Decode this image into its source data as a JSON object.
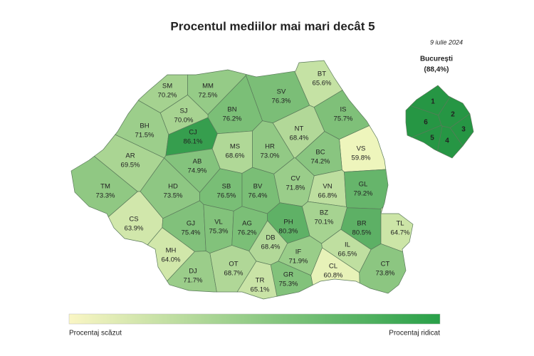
{
  "title": "Procentul mediilor mai mari decât 5",
  "date": "9 iulie 2024",
  "bucharest": {
    "name": "București",
    "value_label": "(88,4%)",
    "value": 88.4,
    "sectors": [
      "1",
      "2",
      "3",
      "4",
      "5",
      "6"
    ]
  },
  "counties": [
    {
      "code": "SM",
      "value": 70.2,
      "value_label": "70.2%"
    },
    {
      "code": "MM",
      "value": 72.5,
      "value_label": "72.5%"
    },
    {
      "code": "BT",
      "value": 65.6,
      "value_label": "65.6%"
    },
    {
      "code": "SV",
      "value": 76.3,
      "value_label": "76.3%"
    },
    {
      "code": "BN",
      "value": 76.2,
      "value_label": "76.2%"
    },
    {
      "code": "SJ",
      "value": 70.0,
      "value_label": "70.0%"
    },
    {
      "code": "BH",
      "value": 71.5,
      "value_label": "71.5%"
    },
    {
      "code": "CJ",
      "value": 86.1,
      "value_label": "86.1%"
    },
    {
      "code": "IS",
      "value": 75.7,
      "value_label": "75.7%"
    },
    {
      "code": "NT",
      "value": 68.4,
      "value_label": "68.4%"
    },
    {
      "code": "VS",
      "value": 59.8,
      "value_label": "59.8%"
    },
    {
      "code": "MS",
      "value": 68.6,
      "value_label": "68.6%"
    },
    {
      "code": "HR",
      "value": 73.0,
      "value_label": "73.0%"
    },
    {
      "code": "BC",
      "value": 74.2,
      "value_label": "74.2%"
    },
    {
      "code": "AR",
      "value": 69.5,
      "value_label": "69.5%"
    },
    {
      "code": "AB",
      "value": 74.9,
      "value_label": "74.9%"
    },
    {
      "code": "TM",
      "value": 73.3,
      "value_label": "73.3%"
    },
    {
      "code": "HD",
      "value": 73.5,
      "value_label": "73.5%"
    },
    {
      "code": "SB",
      "value": 76.5,
      "value_label": "76.5%"
    },
    {
      "code": "BV",
      "value": 76.4,
      "value_label": "76.4%"
    },
    {
      "code": "CV",
      "value": 71.8,
      "value_label": "71.8%"
    },
    {
      "code": "VN",
      "value": 66.8,
      "value_label": "66.8%"
    },
    {
      "code": "GL",
      "value": 79.2,
      "value_label": "79.2%"
    },
    {
      "code": "CS",
      "value": 63.9,
      "value_label": "63.9%"
    },
    {
      "code": "GJ",
      "value": 75.4,
      "value_label": "75.4%"
    },
    {
      "code": "VL",
      "value": 75.3,
      "value_label": "75.3%"
    },
    {
      "code": "AG",
      "value": 76.2,
      "value_label": "76.2%"
    },
    {
      "code": "PH",
      "value": 80.3,
      "value_label": "80.3%"
    },
    {
      "code": "BZ",
      "value": 70.1,
      "value_label": "70.1%"
    },
    {
      "code": "BR",
      "value": 80.5,
      "value_label": "80.5%"
    },
    {
      "code": "TL",
      "value": 64.7,
      "value_label": "64.7%"
    },
    {
      "code": "MH",
      "value": 64.0,
      "value_label": "64.0%"
    },
    {
      "code": "DJ",
      "value": 71.7,
      "value_label": "71.7%"
    },
    {
      "code": "OT",
      "value": 68.7,
      "value_label": "68.7%"
    },
    {
      "code": "DB",
      "value": 68.4,
      "value_label": "68.4%"
    },
    {
      "code": "IF",
      "value": 71.9,
      "value_label": "71.9%"
    },
    {
      "code": "IL",
      "value": 66.5,
      "value_label": "66.5%"
    },
    {
      "code": "CL",
      "value": 60.8,
      "value_label": "60.8%"
    },
    {
      "code": "GR",
      "value": 75.3,
      "value_label": "75.3%"
    },
    {
      "code": "CT",
      "value": 73.8,
      "value_label": "73.8%"
    },
    {
      "code": "TR",
      "value": 65.1,
      "value_label": "65.1%"
    }
  ],
  "legend": {
    "low": "Procentaj scăzut",
    "high": "Procentaj ridicat"
  }
}
